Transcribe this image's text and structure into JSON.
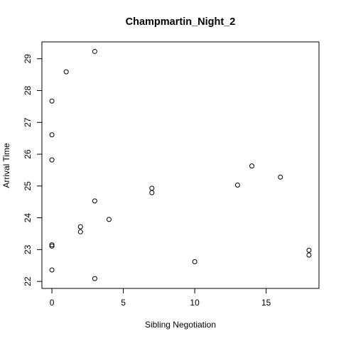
{
  "chart_data": {
    "type": "scatter",
    "title": "Champmartin_Night_2",
    "xlabel": "Sibling Negotiation",
    "ylabel": "Arrival Time",
    "xlim": [
      -0.7,
      18.7
    ],
    "ylim": [
      21.78,
      29.53
    ],
    "xticks": [
      0,
      5,
      10,
      15
    ],
    "yticks": [
      22,
      23,
      24,
      25,
      26,
      27,
      28,
      29
    ],
    "grid": false,
    "legend": "none",
    "marker": "open-circle",
    "points": [
      {
        "x": 0,
        "y": 27.67
      },
      {
        "x": 0,
        "y": 26.61
      },
      {
        "x": 0,
        "y": 25.82
      },
      {
        "x": 0,
        "y": 23.15
      },
      {
        "x": 0,
        "y": 23.11
      },
      {
        "x": 0,
        "y": 22.36
      },
      {
        "x": 1,
        "y": 28.59
      },
      {
        "x": 2,
        "y": 23.72
      },
      {
        "x": 2,
        "y": 23.56
      },
      {
        "x": 3,
        "y": 29.23
      },
      {
        "x": 3,
        "y": 24.53
      },
      {
        "x": 3,
        "y": 22.09
      },
      {
        "x": 4,
        "y": 23.95
      },
      {
        "x": 7,
        "y": 24.93
      },
      {
        "x": 7,
        "y": 24.79
      },
      {
        "x": 10,
        "y": 22.62
      },
      {
        "x": 13,
        "y": 25.03
      },
      {
        "x": 14,
        "y": 25.63
      },
      {
        "x": 16,
        "y": 25.28
      },
      {
        "x": 18,
        "y": 22.98
      },
      {
        "x": 18,
        "y": 22.83
      }
    ]
  }
}
